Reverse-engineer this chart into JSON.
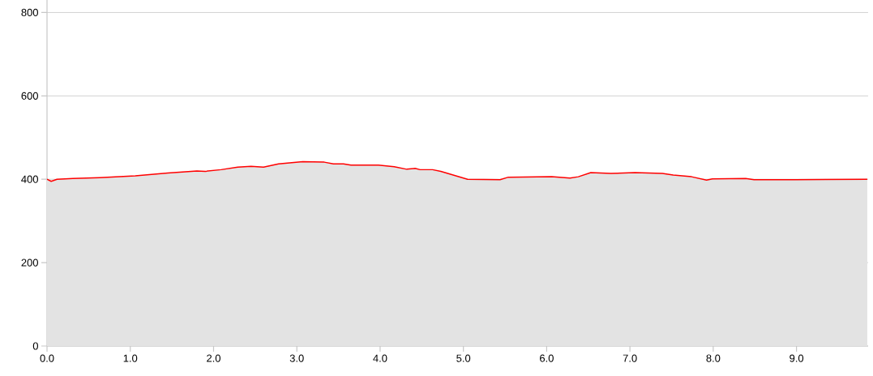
{
  "chart_data": {
    "type": "area",
    "x": [
      0,
      0.05,
      0.12,
      0.31,
      0.63,
      1.06,
      1.45,
      1.8,
      1.9,
      2.09,
      2.29,
      2.45,
      2.6,
      2.78,
      3.07,
      3.33,
      3.44,
      3.56,
      3.65,
      3.98,
      4.17,
      4.32,
      4.42,
      4.48,
      4.63,
      4.73,
      5.05,
      5.44,
      5.54,
      6.06,
      6.28,
      6.38,
      6.53,
      6.77,
      7.06,
      7.39,
      7.52,
      7.74,
      7.92,
      7.99,
      8.39,
      8.49,
      8.98,
      9.85
    ],
    "series": [
      {
        "color": "#ff0000",
        "values": [
          400,
          395,
          400,
          402,
          404,
          408,
          415,
          420,
          419,
          423,
          429,
          431,
          429,
          437,
          442,
          441,
          437,
          437,
          434,
          434,
          430,
          424,
          426,
          423,
          423,
          419,
          400,
          399,
          405,
          406,
          403,
          406,
          416,
          414,
          416,
          414,
          410,
          406,
          398,
          401,
          402,
          399,
          399,
          400
        ]
      }
    ],
    "xlim": [
      0,
      9.86
    ],
    "ylim": [
      0,
      830
    ],
    "xticks": [
      {
        "value": 0,
        "label": "0.0"
      },
      {
        "value": 1,
        "label": "1.0"
      },
      {
        "value": 2,
        "label": "2.0"
      },
      {
        "value": 3,
        "label": "3.0"
      },
      {
        "value": 4,
        "label": "4.0"
      },
      {
        "value": 5,
        "label": "5.0"
      },
      {
        "value": 6,
        "label": "6.0"
      },
      {
        "value": 7,
        "label": "7.0"
      },
      {
        "value": 8,
        "label": "8.0"
      },
      {
        "value": 9,
        "label": "9.0"
      }
    ],
    "yticks": [
      0,
      200,
      400,
      600,
      800
    ],
    "grid": "y"
  }
}
